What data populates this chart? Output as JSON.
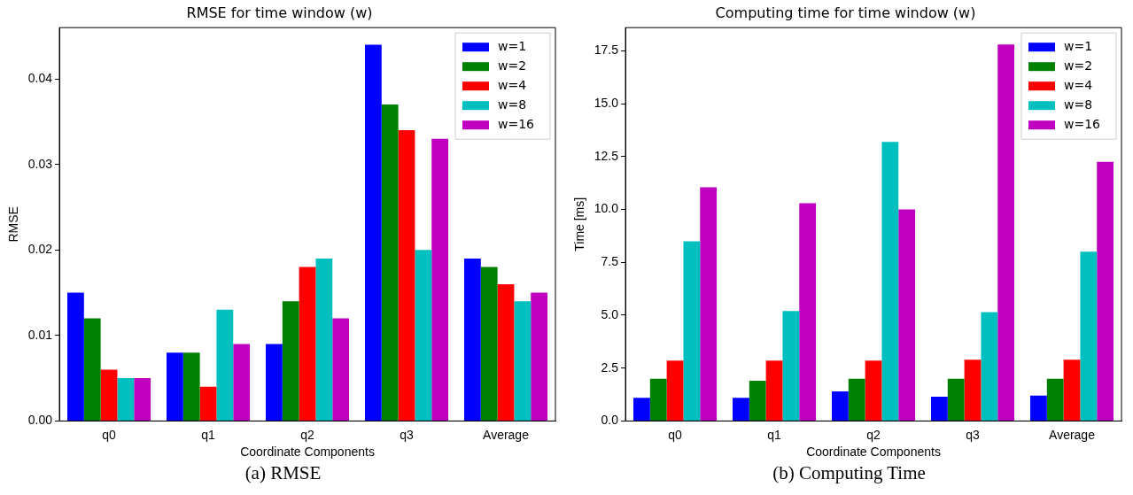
{
  "chart_data": [
    {
      "type": "bar",
      "title": "RMSE for time window (w)",
      "xlabel": "Coordinate Components",
      "ylabel": "RMSE",
      "categories": [
        "q0",
        "q1",
        "q2",
        "q3",
        "Average"
      ],
      "series": [
        {
          "name": "w=1",
          "color": "#0000ff",
          "values": [
            0.015,
            0.008,
            0.009,
            0.044,
            0.019
          ]
        },
        {
          "name": "w=2",
          "color": "#008000",
          "values": [
            0.012,
            0.008,
            0.014,
            0.037,
            0.018
          ]
        },
        {
          "name": "w=4",
          "color": "#ff0000",
          "values": [
            0.006,
            0.004,
            0.018,
            0.034,
            0.016
          ]
        },
        {
          "name": "w=8",
          "color": "#00bfbf",
          "values": [
            0.005,
            0.013,
            0.019,
            0.02,
            0.014
          ]
        },
        {
          "name": "w=16",
          "color": "#bf00bf",
          "values": [
            0.005,
            0.009,
            0.012,
            0.033,
            0.015
          ]
        }
      ],
      "ylim": [
        0,
        0.046
      ],
      "yticks": [
        {
          "value": 0,
          "label": "0.00"
        },
        {
          "value": 0.01,
          "label": "0.01"
        },
        {
          "value": 0.02,
          "label": "0.02"
        },
        {
          "value": 0.03,
          "label": "0.03"
        },
        {
          "value": 0.04,
          "label": "0.04"
        }
      ],
      "grid": false,
      "legend": "top right",
      "annotations": [
        "(a) RMSE"
      ]
    },
    {
      "type": "bar",
      "title": "Computing time for time window (w)",
      "xlabel": "Coordinate Components",
      "ylabel": "Time [ms]",
      "categories": [
        "q0",
        "q1",
        "q2",
        "q3",
        "Average"
      ],
      "series": [
        {
          "name": "w=1",
          "color": "#0000ff",
          "values": [
            1.1,
            1.1,
            1.4,
            1.15,
            1.2
          ]
        },
        {
          "name": "w=2",
          "color": "#008000",
          "values": [
            2.0,
            1.9,
            2.0,
            2.0,
            2.0
          ]
        },
        {
          "name": "w=4",
          "color": "#ff0000",
          "values": [
            2.85,
            2.85,
            2.85,
            2.9,
            2.9
          ]
        },
        {
          "name": "w=8",
          "color": "#00bfbf",
          "values": [
            8.5,
            5.2,
            13.2,
            5.15,
            8.0
          ]
        },
        {
          "name": "w=16",
          "color": "#bf00bf",
          "values": [
            11.05,
            10.3,
            10.0,
            17.8,
            12.25
          ]
        }
      ],
      "ylim": [
        0,
        18.6
      ],
      "yticks": [
        {
          "value": 0,
          "label": "0.0"
        },
        {
          "value": 2.5,
          "label": "2.5"
        },
        {
          "value": 5,
          "label": "5.0"
        },
        {
          "value": 7.5,
          "label": "7.5"
        },
        {
          "value": 10,
          "label": "10.0"
        },
        {
          "value": 12.5,
          "label": "12.5"
        },
        {
          "value": 15,
          "label": "15.0"
        },
        {
          "value": 17.5,
          "label": "17.5"
        }
      ],
      "grid": false,
      "legend": "top right",
      "annotations": [
        "(b) Computing Time"
      ]
    }
  ]
}
